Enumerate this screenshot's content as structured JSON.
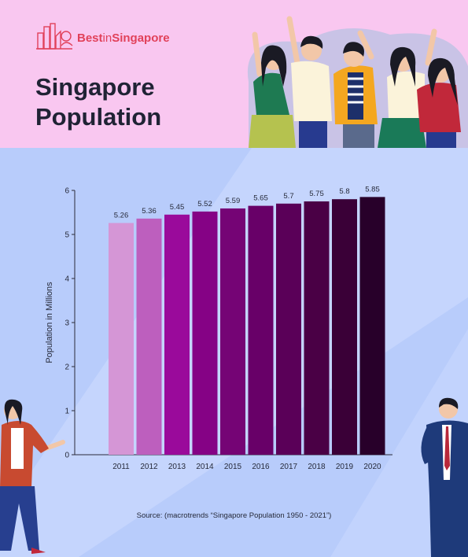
{
  "brand": {
    "name_bold": "Best",
    "name_mid": "in",
    "name_end": "Singapore"
  },
  "title": "Singapore Population",
  "chart_data": {
    "type": "bar",
    "categories": [
      "2011",
      "2012",
      "2013",
      "2014",
      "2015",
      "2016",
      "2017",
      "2018",
      "2019",
      "2020"
    ],
    "values": [
      5.26,
      5.36,
      5.45,
      5.52,
      5.59,
      5.65,
      5.7,
      5.75,
      5.8,
      5.85
    ],
    "value_labels": [
      "5.26",
      "5.36",
      "5.45",
      "5.52",
      "5.59",
      "5.65",
      "5.7",
      "5.75",
      "5.8",
      "5.85"
    ],
    "bar_colors": [
      "#d596d6",
      "#bd5fbe",
      "#9a0a9b",
      "#850285",
      "#750475",
      "#680068",
      "#5a0058",
      "#4a0045",
      "#3a0037",
      "#28002a"
    ],
    "ylabel": "Population in Millions",
    "xlabel": "",
    "ylim": [
      0,
      6
    ],
    "yticks": [
      "0",
      "1",
      "2",
      "3",
      "4",
      "5",
      "6"
    ],
    "grid": false
  },
  "source": "Source: (macrotrends “Singapore Population 1950 - 2021”)"
}
